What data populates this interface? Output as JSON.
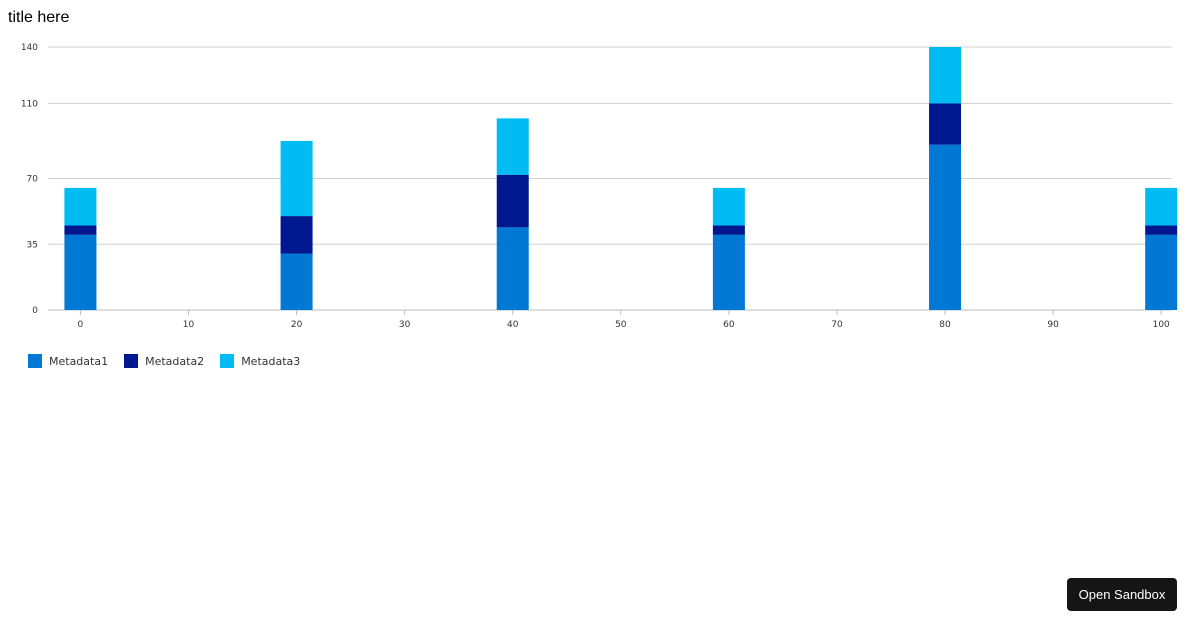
{
  "page": {
    "title": "title here",
    "sandbox_label": "Open Sandbox"
  },
  "chart_data": {
    "type": "bar",
    "stacked": true,
    "title": "title here",
    "xlabel": "",
    "ylabel": "",
    "x": [
      0,
      20,
      40,
      60,
      80,
      100
    ],
    "x_ticks": [
      0,
      10,
      20,
      30,
      40,
      50,
      60,
      70,
      80,
      90,
      100
    ],
    "xlim": [
      -3,
      101
    ],
    "y_ticks": [
      0,
      35,
      70,
      110,
      140
    ],
    "ylim": [
      0,
      140
    ],
    "grid": true,
    "legend_position": "bottom-left",
    "series": [
      {
        "name": "Metadata1",
        "color": "#0078d4",
        "values": [
          40,
          30,
          44,
          40,
          88,
          40
        ]
      },
      {
        "name": "Metadata2",
        "color": "#00188f",
        "values": [
          5,
          20,
          28,
          5,
          22,
          5
        ]
      },
      {
        "name": "Metadata3",
        "color": "#00bcf2",
        "values": [
          20,
          40,
          30,
          20,
          30,
          20
        ]
      }
    ]
  }
}
